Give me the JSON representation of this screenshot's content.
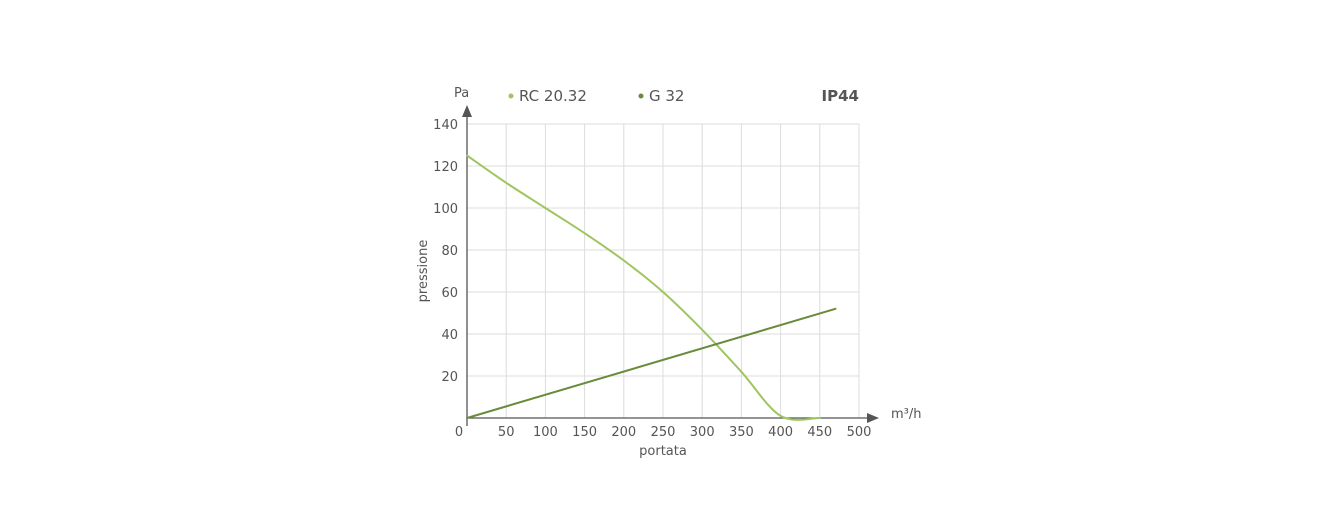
{
  "chart_data": {
    "type": "line",
    "title": "",
    "xlabel": "portata",
    "ylabel": "pressione",
    "x_unit": "m³/h",
    "y_unit": "Pa",
    "xlim": [
      0,
      500
    ],
    "ylim": [
      0,
      140
    ],
    "x_ticks": [
      0,
      50,
      100,
      150,
      200,
      250,
      300,
      350,
      400,
      450,
      500
    ],
    "y_ticks": [
      20,
      40,
      60,
      80,
      100,
      120,
      140
    ],
    "grid": true,
    "legend_position": "top",
    "rating_label": "IP44",
    "series": [
      {
        "name": "RC 20.32",
        "color": "#9fc55e",
        "x": [
          0,
          50,
          100,
          150,
          200,
          250,
          300,
          350,
          400,
          450
        ],
        "y": [
          125,
          112,
          100,
          88,
          75,
          60,
          42,
          22,
          1,
          0
        ]
      },
      {
        "name": "G 32",
        "color": "#6a8b3c",
        "x": [
          0,
          470
        ],
        "y": [
          0,
          52
        ]
      }
    ]
  }
}
